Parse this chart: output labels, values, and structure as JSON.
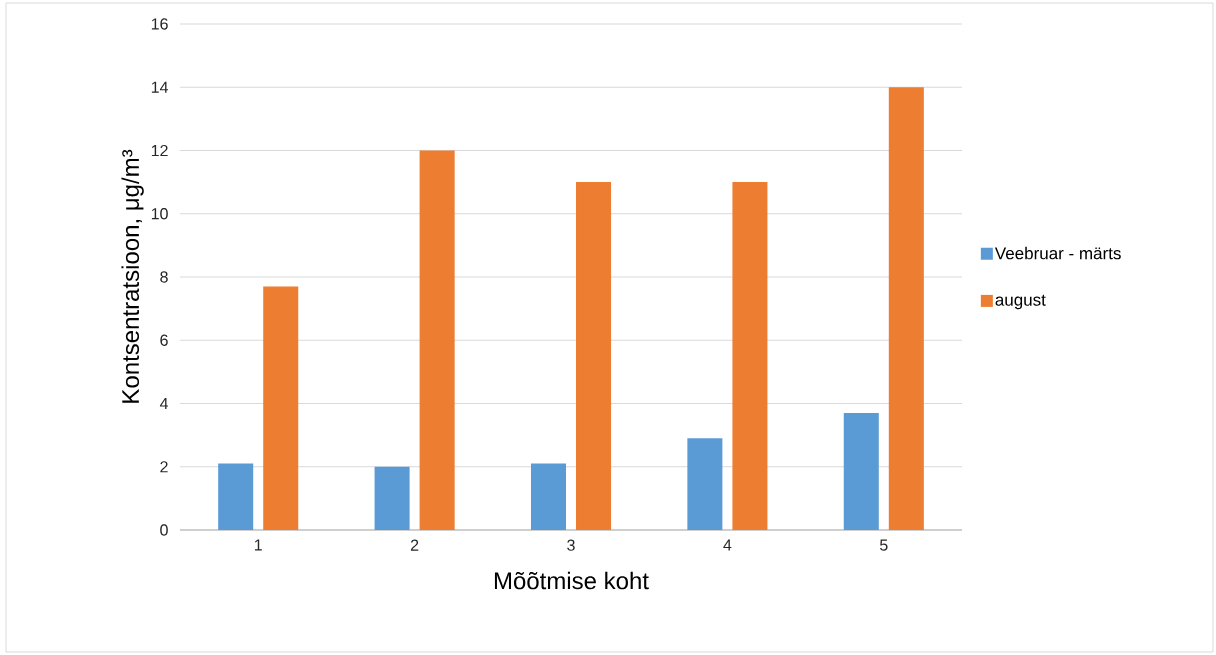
{
  "chart_data": {
    "type": "bar",
    "categories": [
      "1",
      "2",
      "3",
      "4",
      "5"
    ],
    "xlabel": "Mõõtmise koht",
    "ylabel": "Kontsentratsioon, μg/m³",
    "series": [
      {
        "name": "Veebruar - märts",
        "color": "#5b9bd5",
        "values": [
          2.1,
          2.0,
          2.1,
          2.9,
          3.7
        ]
      },
      {
        "name": "august",
        "color": "#ed7d31",
        "values": [
          7.7,
          12,
          11,
          11,
          14
        ]
      }
    ],
    "ylim": [
      0,
      16
    ],
    "yticks": [
      0,
      2,
      4,
      6,
      8,
      10,
      12,
      14,
      16
    ],
    "grid": "y",
    "legend": "right"
  }
}
